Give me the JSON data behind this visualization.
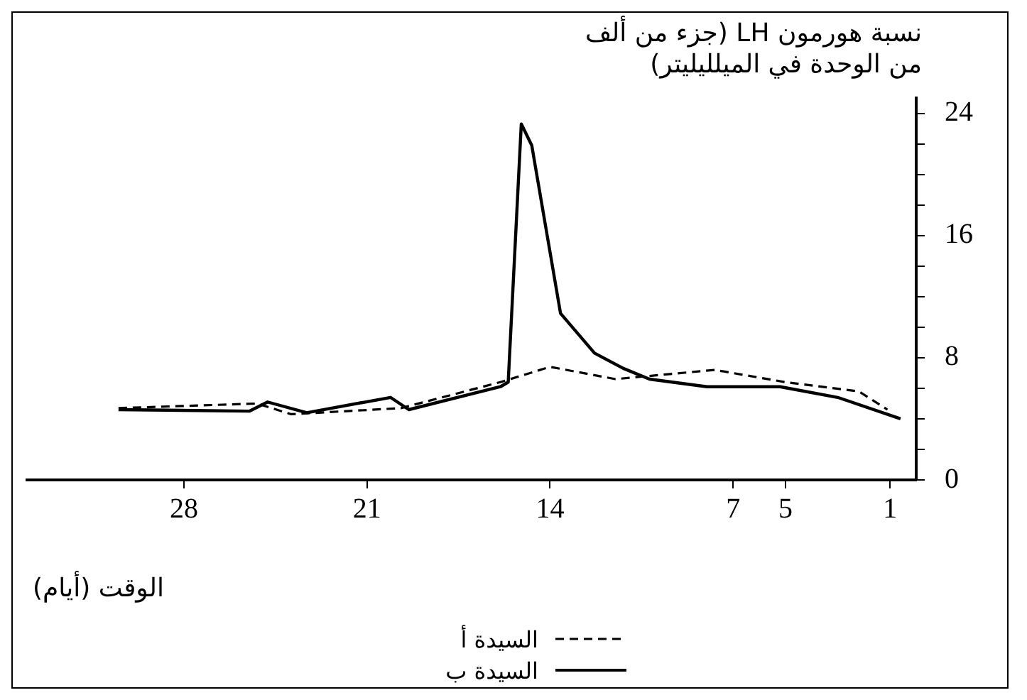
{
  "chart_data": {
    "type": "line",
    "ylabel": "نسبة هورمون LH (جزء من ألف من الوحدة في الميلليليتر)",
    "xlabel": "الوقت (أيام)",
    "xlim": [
      34,
      0
    ],
    "xticks": [
      28,
      21,
      14,
      7,
      5,
      1
    ],
    "ylim": [
      0,
      25
    ],
    "yticks": [
      0,
      {
        "value": 2,
        "label": null
      },
      {
        "value": 4,
        "label": null
      },
      {
        "value": 6,
        "label": null
      },
      8,
      {
        "value": 10,
        "label": null
      },
      {
        "value": 12,
        "label": null
      },
      {
        "value": 14,
        "label": null
      },
      16,
      {
        "value": 18,
        "label": null
      },
      {
        "value": 20,
        "label": null
      },
      {
        "value": 22,
        "label": null
      },
      24
    ],
    "grid": false,
    "legend": "bottom",
    "marker": "none",
    "series": [
      {
        "name": "السيدة أ",
        "color": "#000000",
        "line_style": "dashed",
        "x": [
          30.5,
          25.2,
          23.9,
          19.7,
          15.9,
          14.0,
          11.5,
          7.7,
          5.0,
          2.2,
          1.1
        ],
        "values": [
          4.7,
          5.0,
          4.3,
          4.7,
          6.4,
          7.4,
          6.6,
          7.2,
          6.4,
          5.8,
          4.6
        ]
      },
      {
        "name": "السيدة ب",
        "color": "#000000",
        "line_style": "solid",
        "x": [
          30.5,
          25.5,
          24.8,
          23.3,
          20.1,
          19.4,
          15.9,
          15.6,
          15.1,
          14.7,
          13.6,
          12.3,
          11.2,
          10.2,
          8.0,
          5.2,
          3.0,
          0.6
        ],
        "values": [
          4.6,
          4.5,
          5.1,
          4.4,
          5.4,
          4.6,
          6.1,
          6.4,
          23.3,
          21.9,
          10.9,
          8.3,
          7.3,
          6.6,
          6.1,
          6.1,
          5.4,
          4.0
        ]
      }
    ]
  }
}
